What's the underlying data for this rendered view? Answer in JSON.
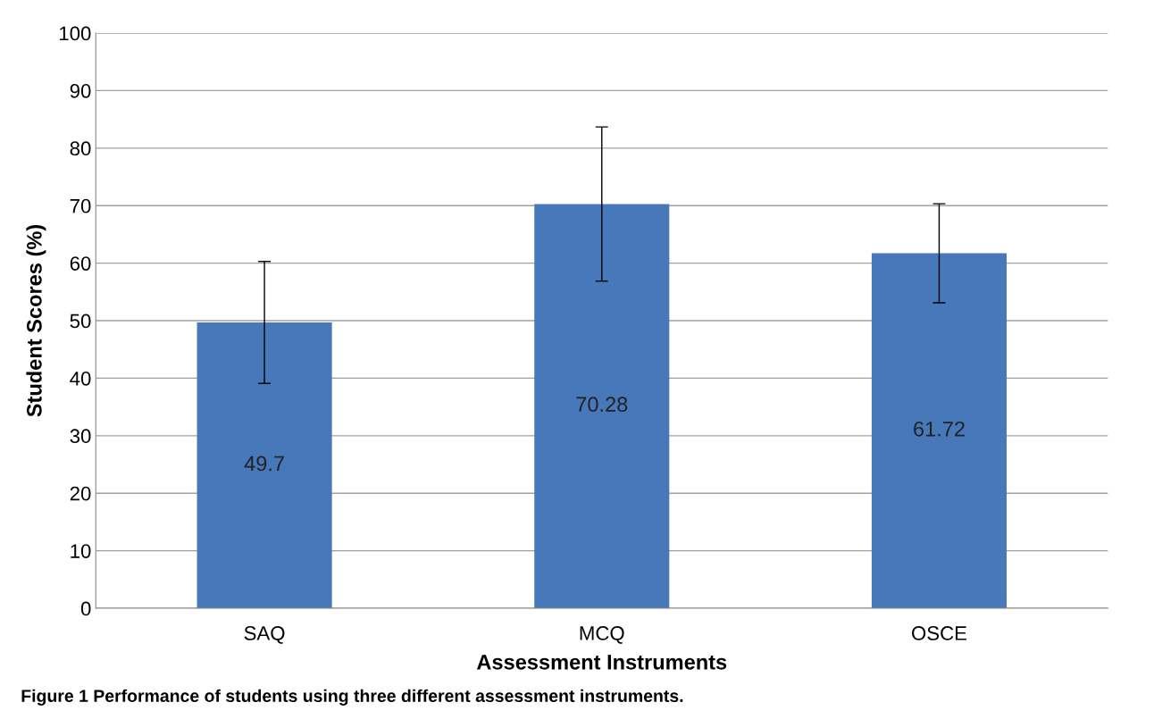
{
  "chart_data": {
    "type": "bar",
    "categories": [
      "SAQ",
      "MCQ",
      "OSCE"
    ],
    "values": [
      49.7,
      70.28,
      61.72
    ],
    "errors": [
      10.6,
      13.4,
      8.6
    ],
    "color": "#4678ba",
    "xlabel": "Assessment Instruments",
    "ylabel": "Student Scores (%)",
    "ylim": [
      0,
      100
    ],
    "yticks": [
      0,
      10,
      20,
      30,
      40,
      50,
      60,
      70,
      80,
      90,
      100
    ],
    "grid": "y",
    "data_labels": true,
    "annotations": [
      "Figure 1 Performance of students using three different assessment instruments."
    ]
  }
}
